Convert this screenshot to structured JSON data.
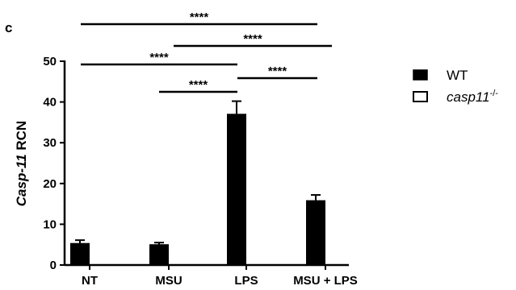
{
  "panel_label": "c",
  "chart_data": {
    "type": "bar",
    "ylabel_italic": "Casp-11",
    "ylabel_rest": " RCN",
    "categories": [
      "NT",
      "MSU",
      "LPS",
      "MSU + LPS"
    ],
    "ylim": [
      0,
      50
    ],
    "yticks": [
      0,
      10,
      20,
      30,
      40,
      50
    ],
    "series": [
      {
        "name": "WT",
        "values": [
          5.3,
          5.0,
          37.0,
          15.8
        ],
        "errors": [
          0.8,
          0.5,
          3.2,
          1.4
        ],
        "color": "#000000"
      },
      {
        "name_base": "casp11",
        "name_sup": "-/-",
        "values": [
          0,
          0,
          0,
          0
        ],
        "errors": [
          0,
          0,
          0,
          0
        ],
        "color": "#ffffff"
      }
    ],
    "comparisons": [
      {
        "from": 0,
        "to": 3,
        "label": "****"
      },
      {
        "from": 1,
        "to": 3,
        "label": "****"
      },
      {
        "from": 0,
        "to": 2,
        "label": "****"
      },
      {
        "from": 2,
        "to": 3,
        "label": "****"
      },
      {
        "from": 1,
        "to": 2,
        "label": "****"
      }
    ],
    "grid": false,
    "legend_position": "right"
  }
}
